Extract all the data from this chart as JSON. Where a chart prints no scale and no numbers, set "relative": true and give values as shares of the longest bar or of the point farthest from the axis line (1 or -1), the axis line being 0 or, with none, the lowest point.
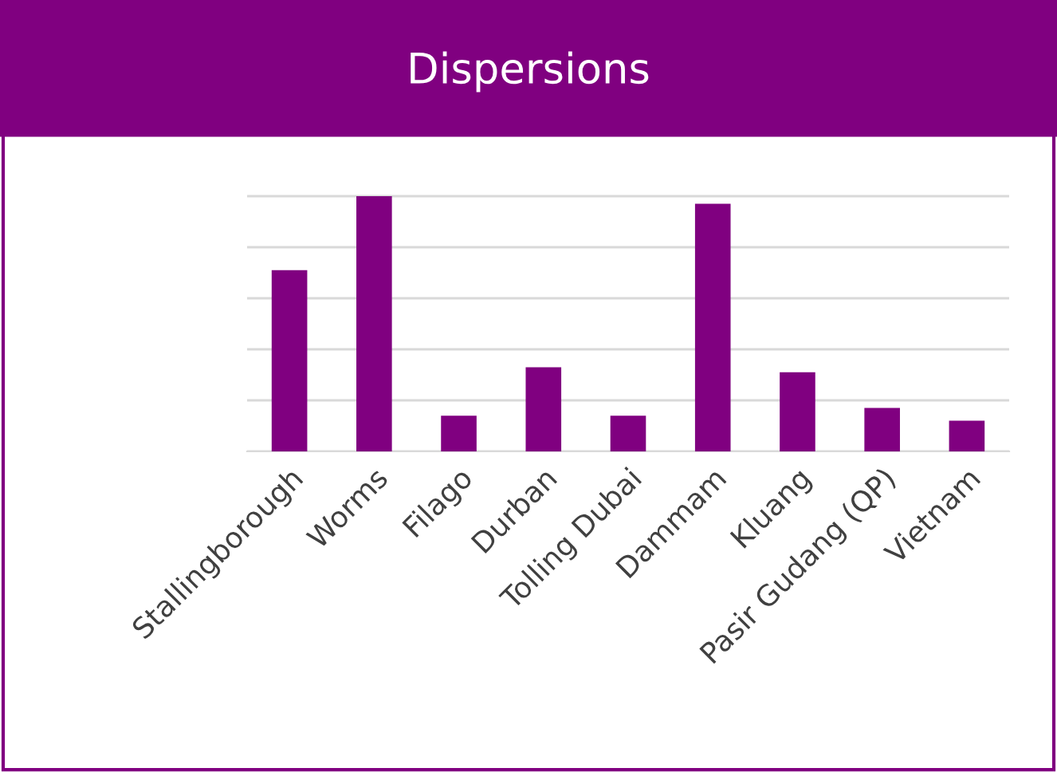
{
  "chart_data": {
    "type": "bar",
    "title": "Dispersions",
    "relative": true,
    "grid": "y",
    "categories": [
      "Stallingborough",
      "Worms",
      "Filago",
      "Durban",
      "Tolling Dubai",
      "Dammam",
      "Kluang",
      "Pasir Gudang (QP)",
      "Vietnam"
    ],
    "values": [
      0.71,
      1,
      0.14,
      0.33,
      0.14,
      0.97,
      0.31,
      0.17,
      0.12
    ],
    "color": "#800080"
  }
}
